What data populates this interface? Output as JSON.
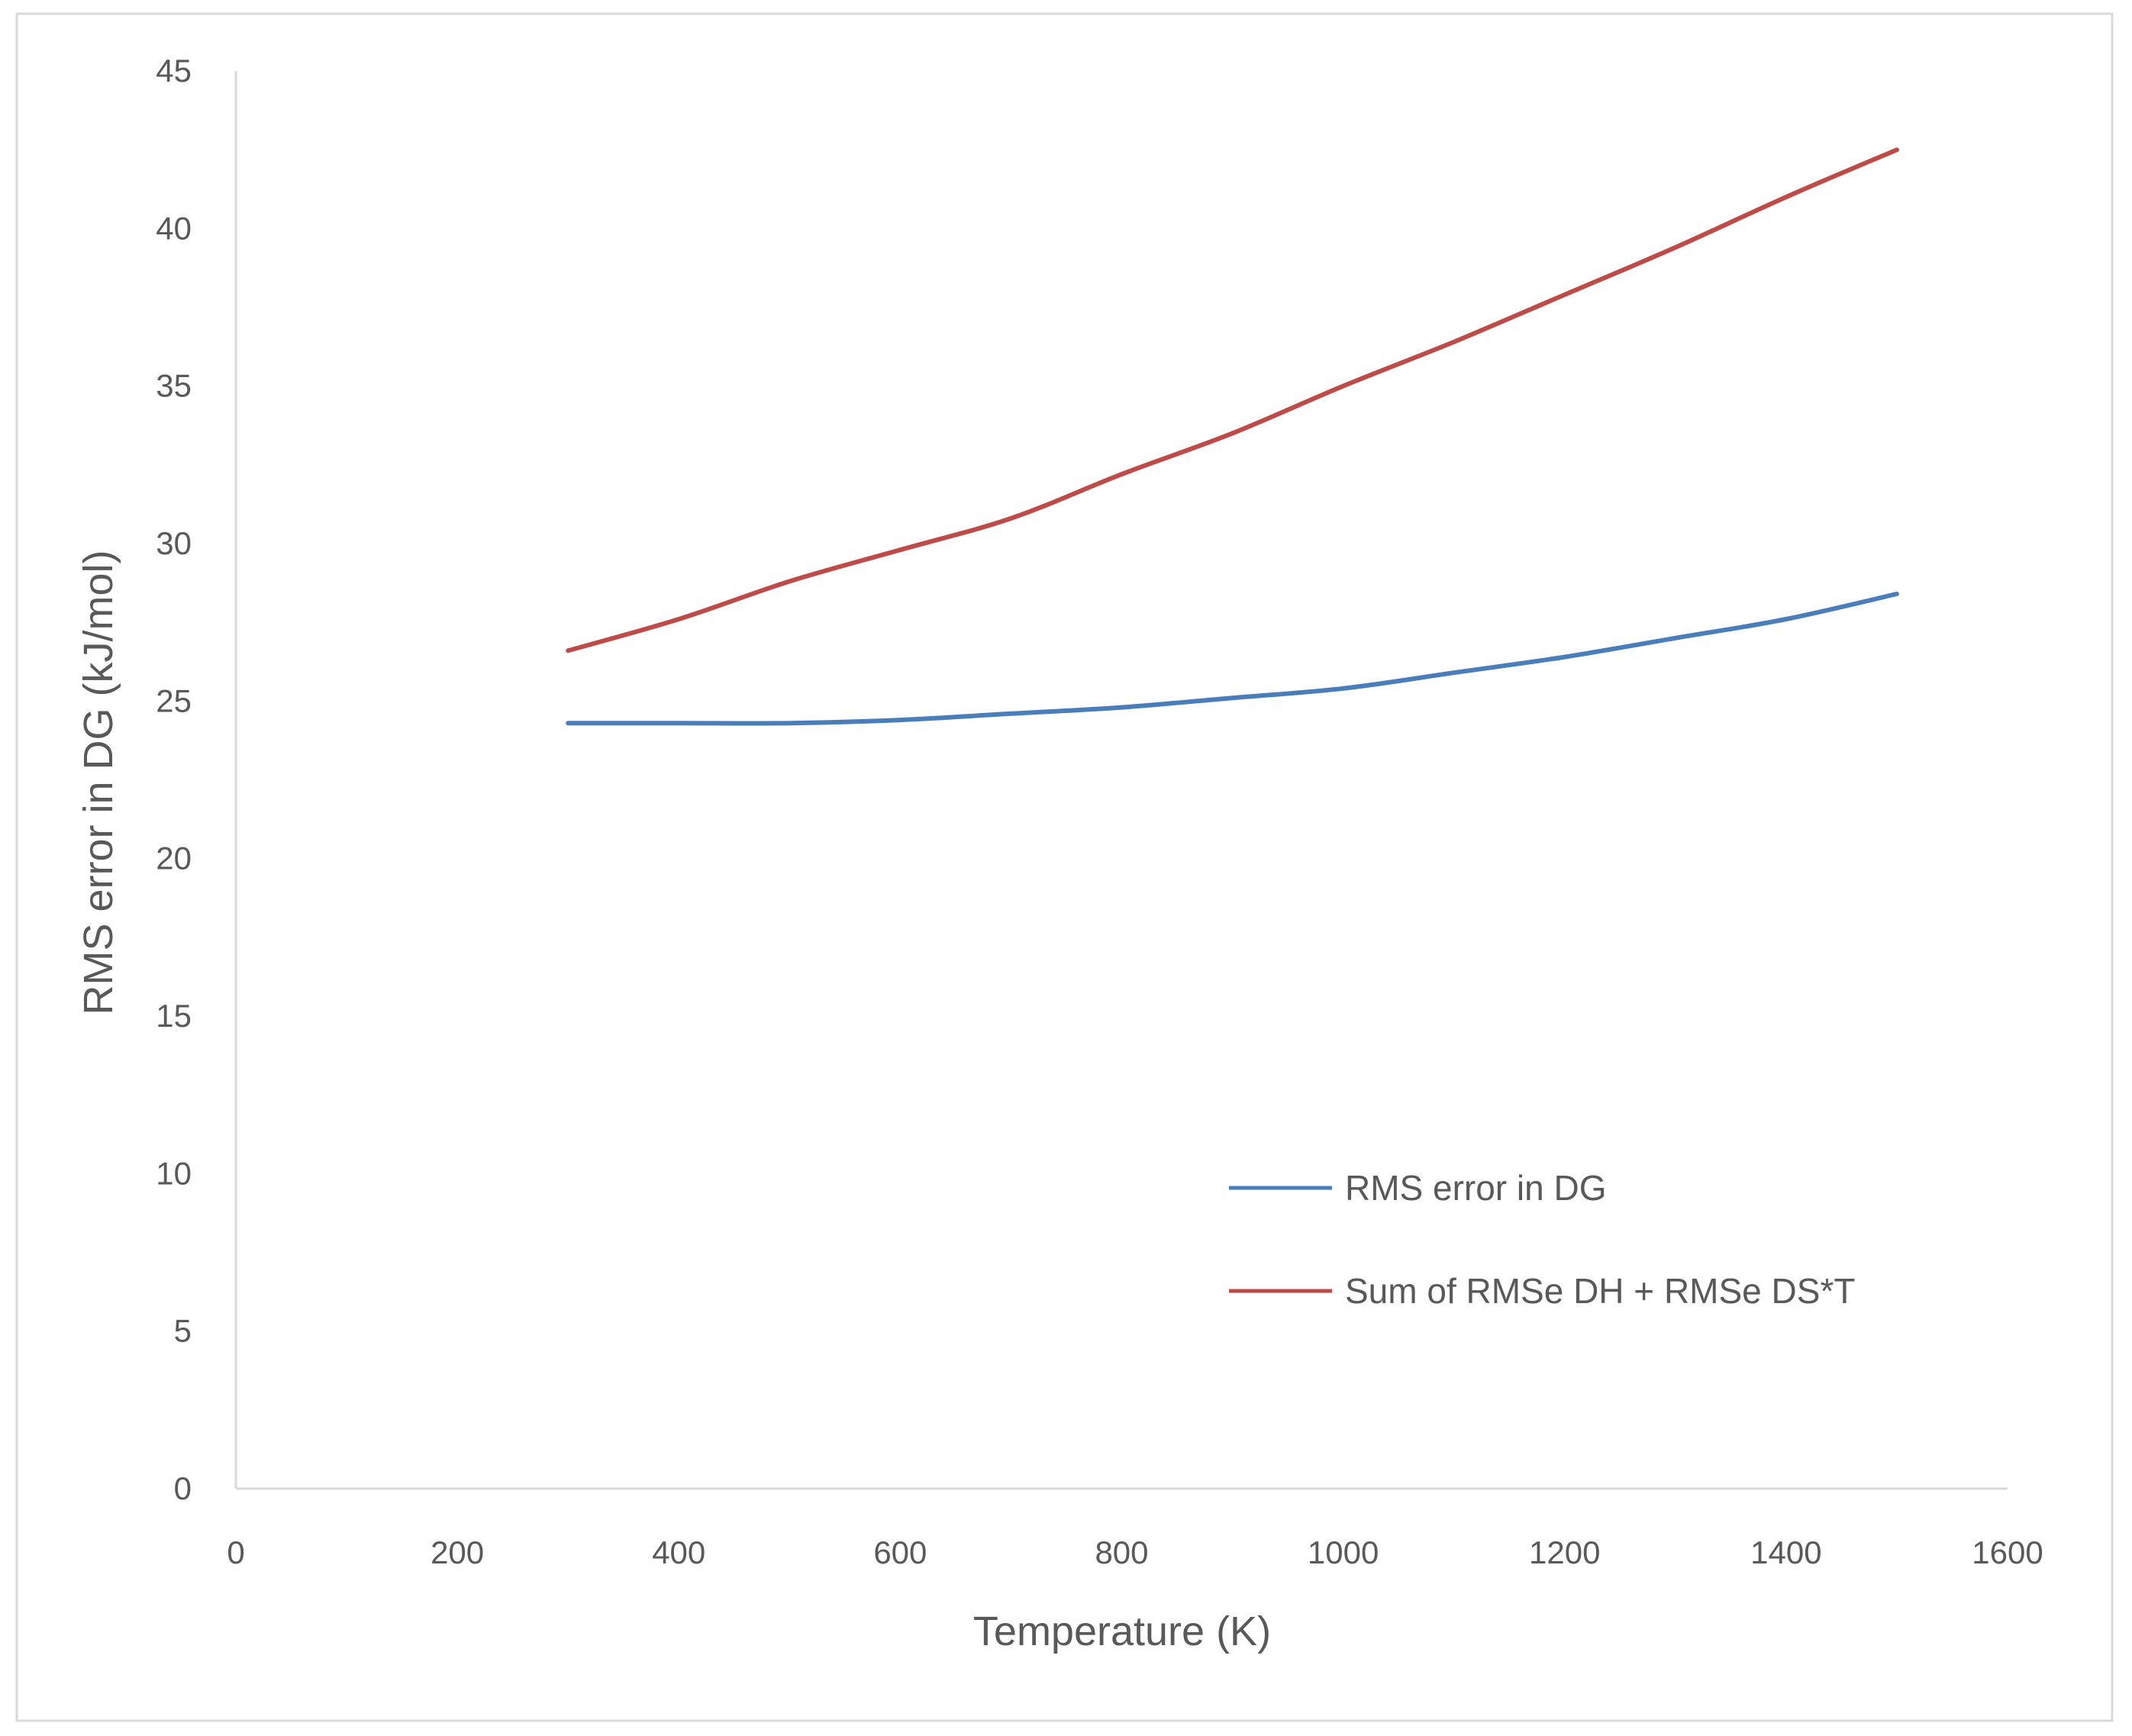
{
  "chart_data": {
    "type": "line",
    "title": "",
    "xlabel": "Temperature (K)",
    "ylabel": "RMS error in DG (kJ/mol)",
    "xlim": [
      0,
      1600
    ],
    "ylim": [
      0,
      45
    ],
    "x_ticks": [
      0,
      200,
      400,
      600,
      800,
      1000,
      1200,
      1400,
      1600
    ],
    "y_ticks": [
      0,
      5,
      10,
      15,
      20,
      25,
      30,
      35,
      40,
      45
    ],
    "grid": false,
    "legend_position": "bottom-right",
    "series": [
      {
        "name": "RMS error in DG",
        "color": "#4a7ebb",
        "x": [
          300,
          400,
          500,
          600,
          700,
          800,
          900,
          1000,
          1100,
          1200,
          1300,
          1400,
          1500
        ],
        "y": [
          24.3,
          24.3,
          24.3,
          24.4,
          24.6,
          24.8,
          25.1,
          25.4,
          25.9,
          26.4,
          27.0,
          27.6,
          28.4
        ]
      },
      {
        "name": "Sum of RMSe DH + RMSe DS*T",
        "color": "#be4b48",
        "x": [
          300,
          400,
          500,
          600,
          700,
          800,
          900,
          1000,
          1100,
          1200,
          1300,
          1400,
          1500
        ],
        "y": [
          26.6,
          27.6,
          28.8,
          29.8,
          30.8,
          32.2,
          33.5,
          35.0,
          36.4,
          37.9,
          39.4,
          41.0,
          42.5
        ]
      }
    ]
  }
}
